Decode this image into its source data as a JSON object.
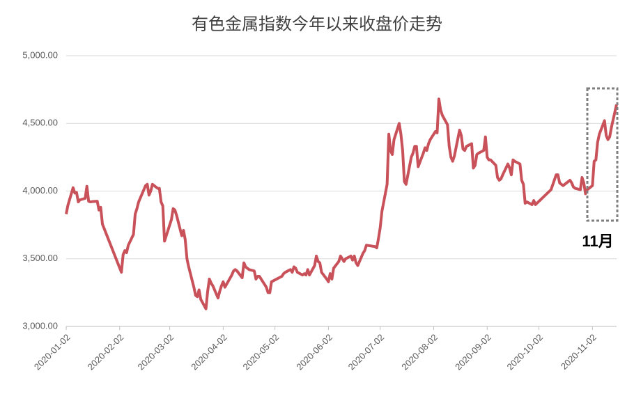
{
  "chart_data": {
    "type": "line",
    "title": "有色金属指数今年以来收盘价走势",
    "annotation": "11月",
    "x": [
      "2020-01-02",
      "2020-01-03",
      "2020-01-06",
      "2020-01-07",
      "2020-01-08",
      "2020-01-09",
      "2020-01-10",
      "2020-01-13",
      "2020-01-14",
      "2020-01-15",
      "2020-01-16",
      "2020-01-17",
      "2020-01-20",
      "2020-01-21",
      "2020-01-22",
      "2020-01-23",
      "2020-02-03",
      "2020-02-04",
      "2020-02-05",
      "2020-02-06",
      "2020-02-07",
      "2020-02-10",
      "2020-02-11",
      "2020-02-12",
      "2020-02-13",
      "2020-02-14",
      "2020-02-17",
      "2020-02-18",
      "2020-02-19",
      "2020-02-20",
      "2020-02-21",
      "2020-02-24",
      "2020-02-25",
      "2020-02-26",
      "2020-02-27",
      "2020-02-28",
      "2020-03-02",
      "2020-03-03",
      "2020-03-04",
      "2020-03-05",
      "2020-03-06",
      "2020-03-09",
      "2020-03-10",
      "2020-03-11",
      "2020-03-12",
      "2020-03-13",
      "2020-03-16",
      "2020-03-17",
      "2020-03-18",
      "2020-03-19",
      "2020-03-20",
      "2020-03-23",
      "2020-03-24",
      "2020-03-25",
      "2020-03-26",
      "2020-03-27",
      "2020-03-30",
      "2020-03-31",
      "2020-04-01",
      "2020-04-02",
      "2020-04-03",
      "2020-04-07",
      "2020-04-08",
      "2020-04-09",
      "2020-04-10",
      "2020-04-13",
      "2020-04-14",
      "2020-04-15",
      "2020-04-16",
      "2020-04-17",
      "2020-04-20",
      "2020-04-21",
      "2020-04-22",
      "2020-04-23",
      "2020-04-24",
      "2020-04-27",
      "2020-04-28",
      "2020-04-29",
      "2020-04-30",
      "2020-05-06",
      "2020-05-07",
      "2020-05-08",
      "2020-05-11",
      "2020-05-12",
      "2020-05-13",
      "2020-05-14",
      "2020-05-15",
      "2020-05-18",
      "2020-05-19",
      "2020-05-20",
      "2020-05-21",
      "2020-05-22",
      "2020-05-25",
      "2020-05-26",
      "2020-05-27",
      "2020-05-28",
      "2020-05-29",
      "2020-06-01",
      "2020-06-02",
      "2020-06-03",
      "2020-06-04",
      "2020-06-05",
      "2020-06-08",
      "2020-06-09",
      "2020-06-10",
      "2020-06-11",
      "2020-06-12",
      "2020-06-15",
      "2020-06-16",
      "2020-06-17",
      "2020-06-18",
      "2020-06-19",
      "2020-06-22",
      "2020-06-23",
      "2020-06-24",
      "2020-06-29",
      "2020-06-30",
      "2020-07-01",
      "2020-07-02",
      "2020-07-03",
      "2020-07-06",
      "2020-07-07",
      "2020-07-08",
      "2020-07-09",
      "2020-07-10",
      "2020-07-13",
      "2020-07-14",
      "2020-07-15",
      "2020-07-16",
      "2020-07-17",
      "2020-07-20",
      "2020-07-21",
      "2020-07-22",
      "2020-07-23",
      "2020-07-24",
      "2020-07-27",
      "2020-07-28",
      "2020-07-29",
      "2020-07-30",
      "2020-07-31",
      "2020-08-03",
      "2020-08-04",
      "2020-08-05",
      "2020-08-06",
      "2020-08-07",
      "2020-08-10",
      "2020-08-11",
      "2020-08-12",
      "2020-08-13",
      "2020-08-14",
      "2020-08-17",
      "2020-08-18",
      "2020-08-19",
      "2020-08-20",
      "2020-08-21",
      "2020-08-24",
      "2020-08-25",
      "2020-08-26",
      "2020-08-27",
      "2020-08-28",
      "2020-08-31",
      "2020-09-01",
      "2020-09-02",
      "2020-09-03",
      "2020-09-04",
      "2020-09-07",
      "2020-09-08",
      "2020-09-09",
      "2020-09-10",
      "2020-09-11",
      "2020-09-14",
      "2020-09-15",
      "2020-09-16",
      "2020-09-17",
      "2020-09-18",
      "2020-09-21",
      "2020-09-22",
      "2020-09-23",
      "2020-09-24",
      "2020-09-25",
      "2020-09-28",
      "2020-09-29",
      "2020-09-30",
      "2020-10-09",
      "2020-10-12",
      "2020-10-13",
      "2020-10-14",
      "2020-10-15",
      "2020-10-16",
      "2020-10-19",
      "2020-10-20",
      "2020-10-21",
      "2020-10-22",
      "2020-10-23",
      "2020-10-26",
      "2020-10-27",
      "2020-10-28",
      "2020-10-29",
      "2020-10-30",
      "2020-11-02",
      "2020-11-03",
      "2020-11-04",
      "2020-11-05",
      "2020-11-06",
      "2020-11-09",
      "2020-11-10",
      "2020-11-11",
      "2020-11-12",
      "2020-11-13",
      "2020-11-16"
    ],
    "values": [
      3830,
      3895,
      4025,
      3985,
      3990,
      3920,
      3935,
      3946,
      4035,
      3925,
      3920,
      3922,
      3925,
      3860,
      3880,
      3756,
      3400,
      3530,
      3560,
      3545,
      3600,
      3680,
      3830,
      3870,
      3920,
      3950,
      4040,
      4050,
      3970,
      4000,
      4050,
      4020,
      4020,
      3920,
      3890,
      3630,
      3750,
      3790,
      3870,
      3860,
      3820,
      3670,
      3710,
      3640,
      3500,
      3440,
      3290,
      3230,
      3220,
      3270,
      3200,
      3130,
      3260,
      3350,
      3320,
      3300,
      3210,
      3260,
      3300,
      3330,
      3290,
      3380,
      3410,
      3420,
      3410,
      3360,
      3470,
      3440,
      3430,
      3420,
      3410,
      3350,
      3370,
      3370,
      3350,
      3290,
      3250,
      3250,
      3330,
      3370,
      3390,
      3400,
      3420,
      3400,
      3440,
      3430,
      3400,
      3380,
      3390,
      3380,
      3420,
      3380,
      3450,
      3520,
      3480,
      3470,
      3400,
      3350,
      3330,
      3390,
      3350,
      3430,
      3480,
      3520,
      3500,
      3480,
      3500,
      3520,
      3490,
      3520,
      3470,
      3450,
      3540,
      3560,
      3600,
      3590,
      3580,
      3650,
      3730,
      3850,
      4050,
      4420,
      4300,
      4270,
      4380,
      4500,
      4420,
      4300,
      4070,
      4050,
      4250,
      4280,
      4330,
      4330,
      4180,
      4280,
      4320,
      4300,
      4350,
      4380,
      4440,
      4430,
      4680,
      4600,
      4560,
      4490,
      4330,
      4250,
      4220,
      4260,
      4450,
      4410,
      4310,
      4300,
      4330,
      4350,
      4170,
      4190,
      4270,
      4280,
      4300,
      4400,
      4250,
      4230,
      4230,
      4190,
      4100,
      4080,
      4090,
      4120,
      4200,
      4170,
      4120,
      4230,
      4220,
      4200,
      4080,
      4050,
      3910,
      3920,
      3900,
      3930,
      3900,
      4010,
      4120,
      4120,
      4060,
      4050,
      4040,
      4070,
      4080,
      4060,
      4030,
      4020,
      4010,
      4100,
      4060,
      3980,
      4010,
      4040,
      4220,
      4230,
      4360,
      4420,
      4520,
      4410,
      4380,
      4400,
      4470,
      4640
    ],
    "color": "#c8515a",
    "xlim": [
      "2020-01-02",
      "2020-11-16"
    ],
    "xticks": [
      "2020-01-02",
      "2020-02-02",
      "2020-03-02",
      "2020-04-02",
      "2020-05-02",
      "2020-06-02",
      "2020-07-02",
      "2020-08-02",
      "2020-09-02",
      "2020-10-02",
      "2020-11-02"
    ],
    "ylim": [
      3000,
      5000
    ],
    "yticks": [
      {
        "value": 3000,
        "label": "3,000.00"
      },
      {
        "value": 3500,
        "label": "3,500.00"
      },
      {
        "value": 4000,
        "label": "4,000.00"
      },
      {
        "value": 4500,
        "label": "4,500.00"
      },
      {
        "value": 5000,
        "label": "5,000.00"
      }
    ],
    "grid": true
  }
}
